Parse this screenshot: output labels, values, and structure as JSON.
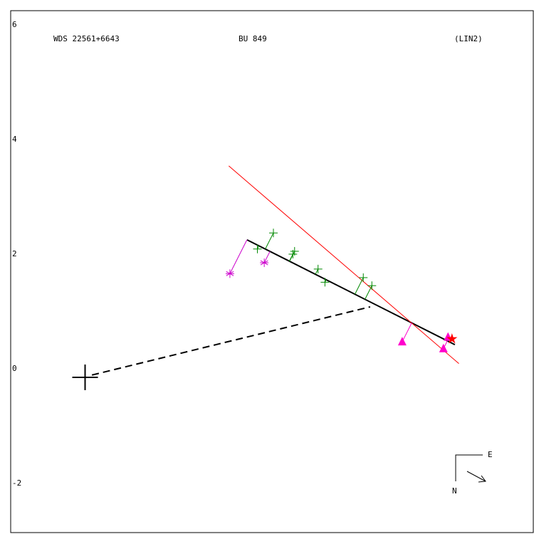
{
  "chart_data": {
    "type": "scatter",
    "header": [
      "WDS 22561+6643",
      "BU  849",
      "(LIN2)"
    ],
    "xlim": [
      -1.3,
      7.83
    ],
    "ylim": [
      -2.71,
      6.4
    ],
    "yticks": [
      6,
      4,
      2,
      0,
      -2
    ],
    "series": [
      {
        "marker": "plus",
        "color": "#008800",
        "residuals": true,
        "x": [
          3.29,
          3.01,
          3.66,
          3.63,
          4.07,
          4.19,
          4.86,
          5.01
        ],
        "y": [
          2.52,
          2.24,
          2.2,
          2.15,
          1.89,
          1.66,
          1.74,
          1.6
        ]
      },
      {
        "marker": "asterisk",
        "color": "#cc00cc",
        "residuals": true,
        "x": [
          2.53,
          3.13
        ],
        "y": [
          1.81,
          2.0
        ]
      },
      {
        "marker": "triangle",
        "color": "#ff00cc",
        "residuals": true,
        "x": [
          5.54,
          6.26,
          6.34
        ],
        "y": [
          0.62,
          0.5,
          0.7
        ]
      },
      {
        "marker": "star",
        "color": "#ff0000",
        "residuals": false,
        "x": [
          6.41
        ],
        "y": [
          0.67
        ]
      },
      {
        "marker": "cross",
        "color": "#000000",
        "residuals": false,
        "x": [
          0
        ],
        "y": [
          0
        ]
      }
    ],
    "lines": [
      {
        "color": "#000000",
        "width": 2,
        "dash": false,
        "x": [
          2.83,
          6.46
        ],
        "y": [
          2.4,
          0.57
        ]
      },
      {
        "color": "#ff0000",
        "width": 1,
        "dash": false,
        "x": [
          2.51,
          6.53
        ],
        "y": [
          3.69,
          0.24
        ]
      },
      {
        "color": "#000000",
        "width": 2,
        "dash": true,
        "x": [
          0.12,
          4.98
        ],
        "y": [
          0.04,
          1.23
        ]
      }
    ],
    "compass": {
      "east": "E",
      "north": "N"
    }
  }
}
